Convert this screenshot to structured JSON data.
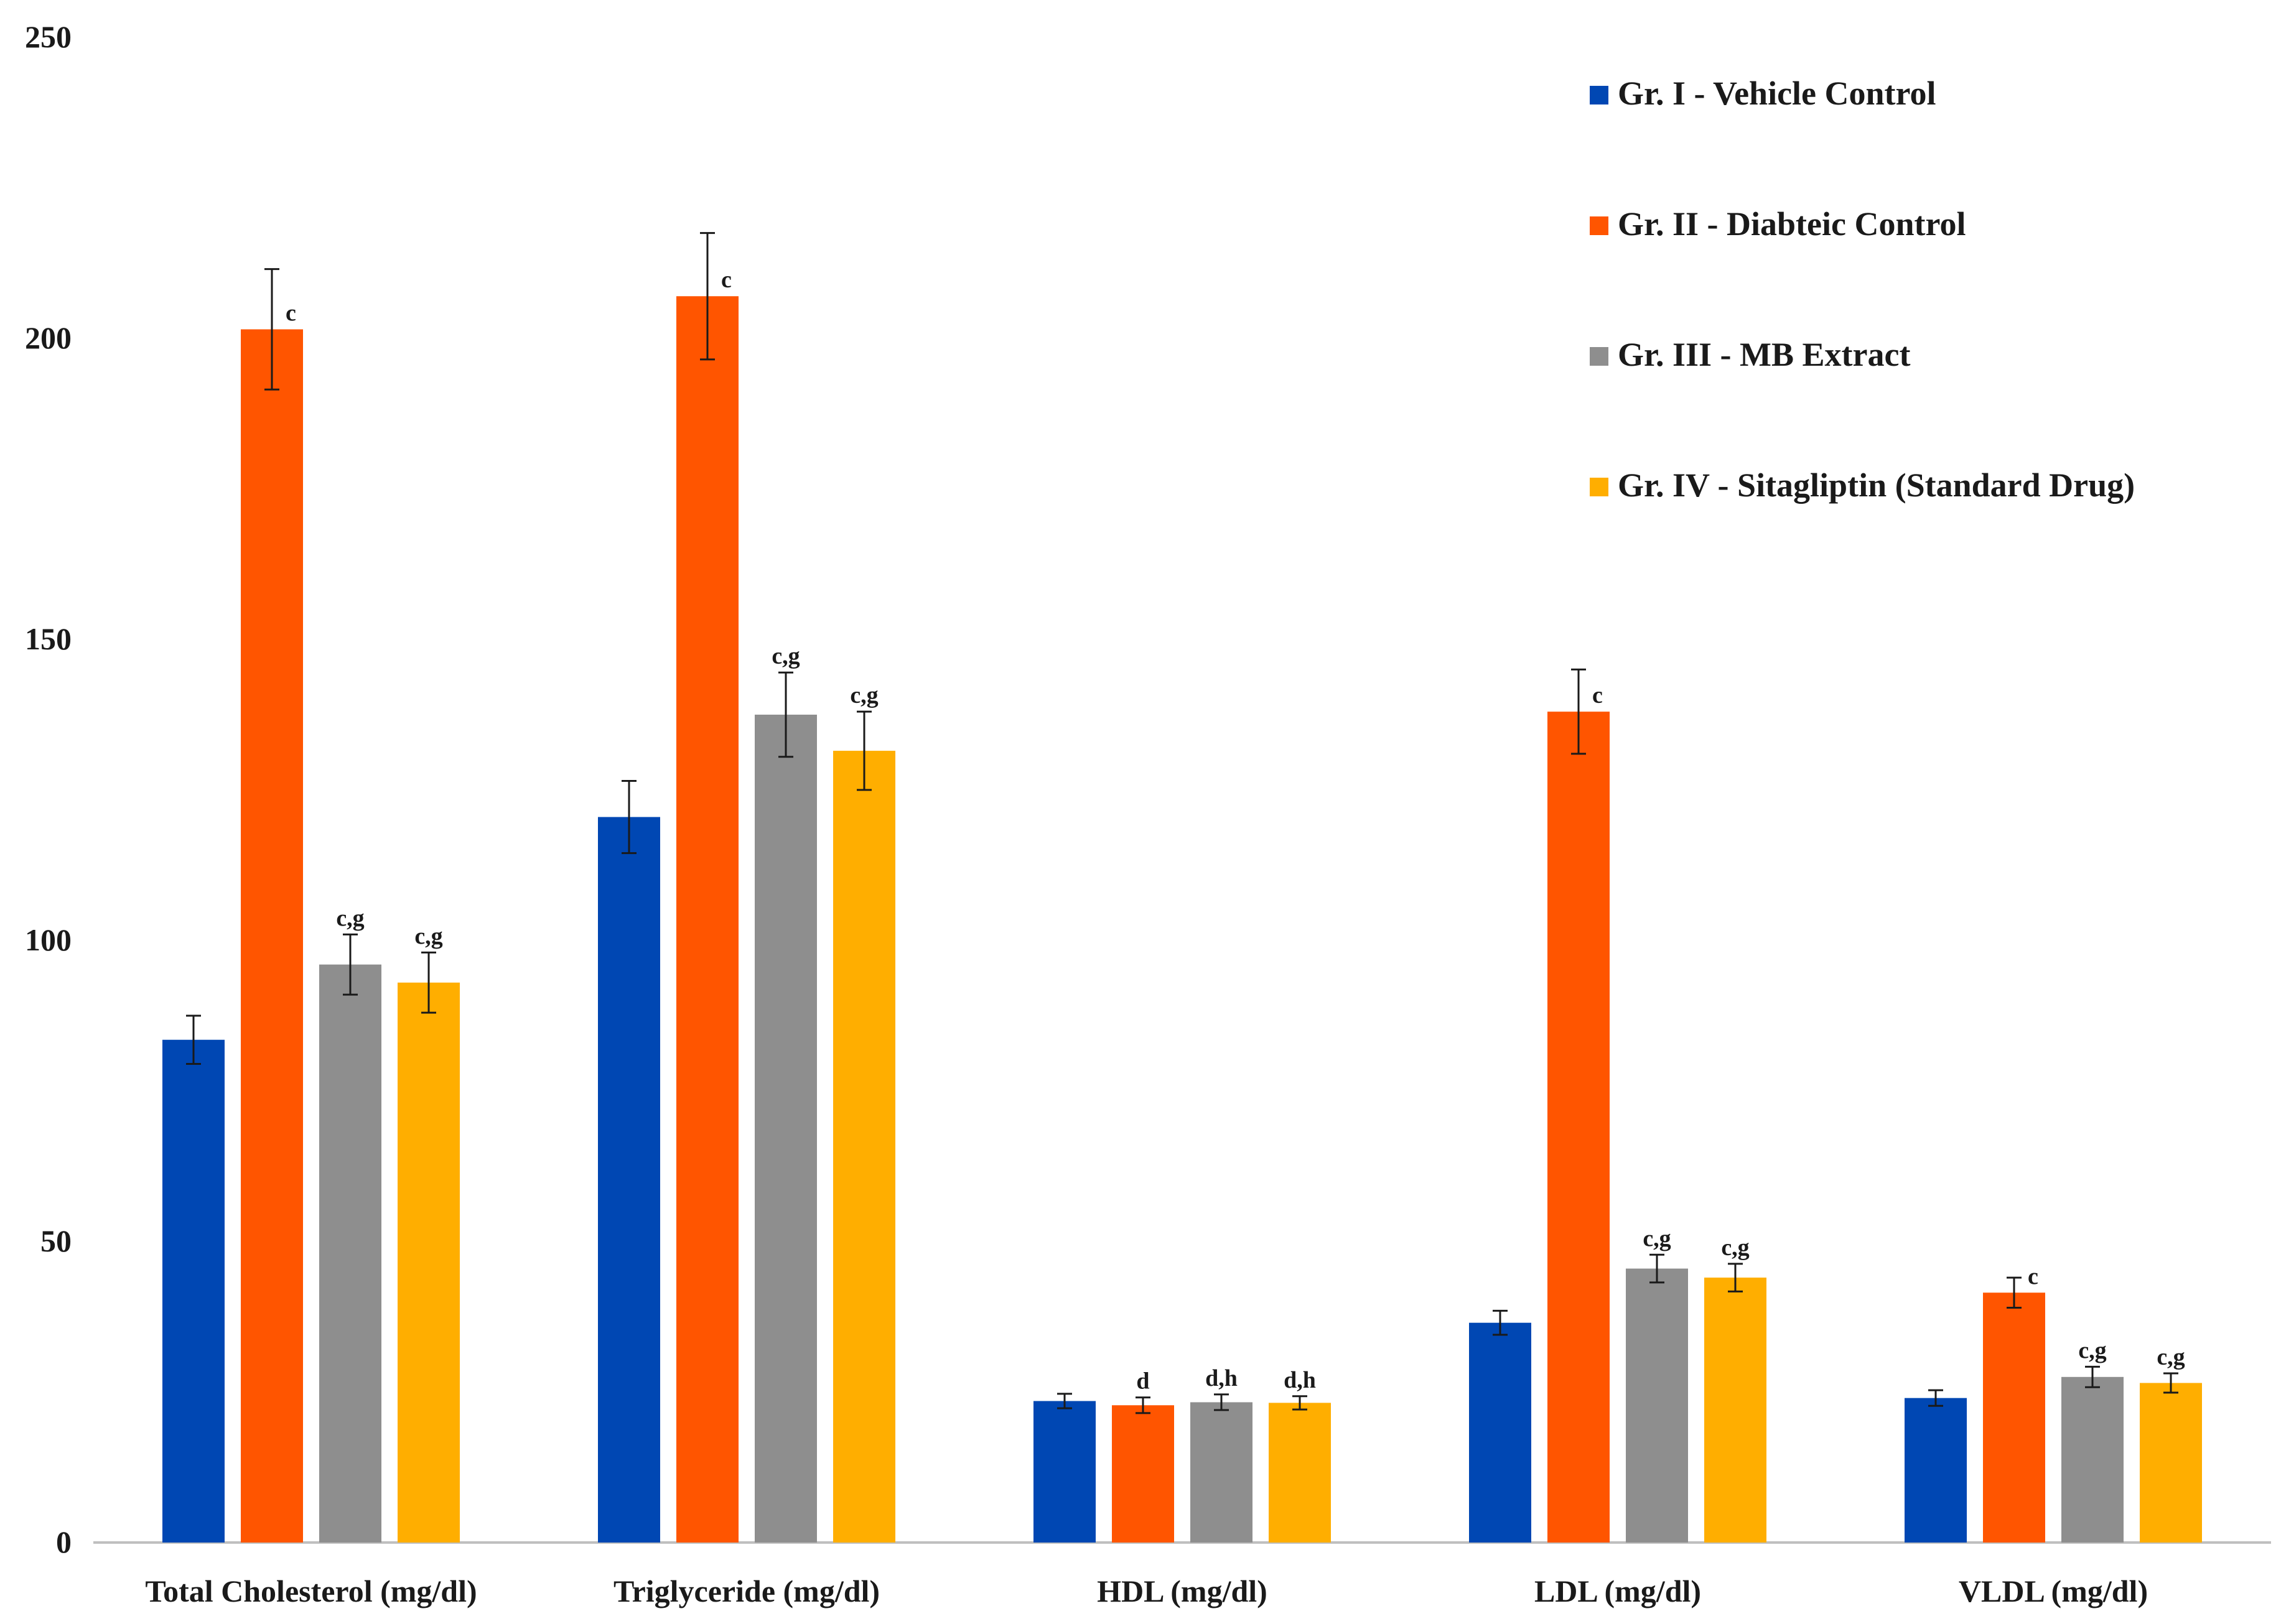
{
  "chart_data": {
    "type": "bar",
    "title": "",
    "xlabel": "",
    "ylabel": "",
    "ylim": [
      0,
      250
    ],
    "yticks": [
      0,
      50,
      100,
      150,
      200,
      250
    ],
    "grid": false,
    "legend_position": "top-right",
    "categories": [
      "Total Cholesterol (mg/dl)",
      "Triglyceride (mg/dl)",
      "HDL (mg/dl)",
      "LDL (mg/dl)",
      "VLDL (mg/dl)"
    ],
    "series": [
      {
        "name": "Gr. I - Vehicle Control",
        "color": "#0047B3",
        "values": [
          83.5,
          120.5,
          23.5,
          36.5,
          24
        ],
        "errors": [
          4,
          6,
          1.2,
          2,
          1.3
        ],
        "sig": [
          "",
          "",
          "",
          "",
          ""
        ]
      },
      {
        "name": "Gr. II - Diabteic Control",
        "color": "#FF5500",
        "values": [
          201.5,
          207,
          22.8,
          138,
          41.5
        ],
        "errors": [
          10,
          10.5,
          1.3,
          7,
          2.5
        ],
        "sig": [
          "c",
          "c",
          "d",
          "c",
          "c"
        ]
      },
      {
        "name": "Gr. III - MB Extract",
        "color": "#8E8E8E",
        "values": [
          96,
          137.5,
          23.3,
          45.5,
          27.5
        ],
        "errors": [
          5,
          7,
          1.3,
          2.3,
          1.7
        ],
        "sig": [
          "c,g",
          "c,g",
          "d,h",
          "c,g",
          "c,g"
        ]
      },
      {
        "name": "Gr. IV - Sitagliptin (Standard Drug)",
        "color": "#FFAE00",
        "values": [
          93,
          131.5,
          23.2,
          44,
          26.5
        ],
        "errors": [
          5,
          6.5,
          1.1,
          2.3,
          1.6
        ],
        "sig": [
          "c,g",
          "c,g",
          "d,h",
          "c,g",
          "c,g"
        ]
      }
    ]
  }
}
